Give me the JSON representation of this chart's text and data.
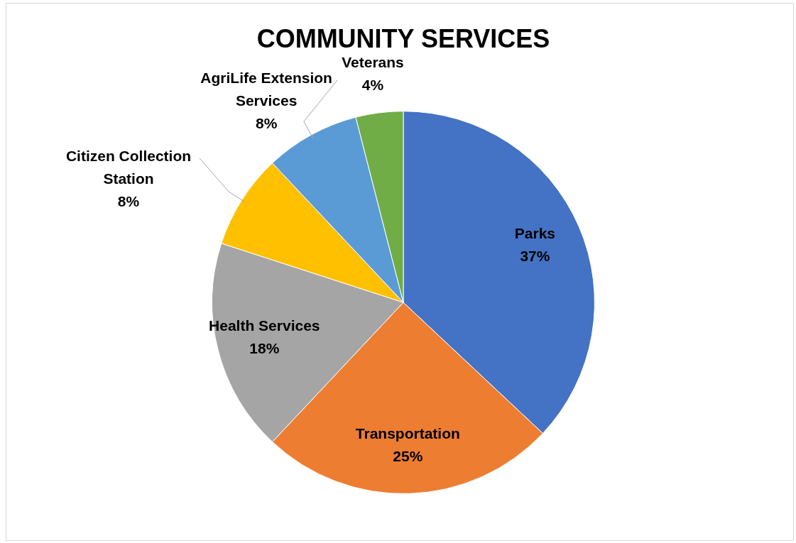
{
  "chart_data": {
    "type": "pie",
    "title": "COMMUNITY SERVICES",
    "categories": [
      "Parks",
      "Transportation",
      "Health Services",
      "Citizen Collection Station",
      "AgriLife Extension Services",
      "Veterans"
    ],
    "values": [
      37,
      25,
      18,
      8,
      8,
      4
    ],
    "colors": [
      "#4472c4",
      "#ed7d31",
      "#a5a5a5",
      "#ffc000",
      "#5b9bd5",
      "#70ad47"
    ],
    "value_labels": [
      "37%",
      "25%",
      "18%",
      "8%",
      "8%",
      "4%"
    ],
    "legend": false
  }
}
